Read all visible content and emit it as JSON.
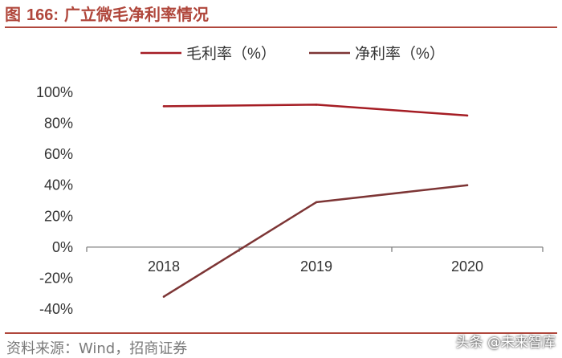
{
  "figure": {
    "title_prefix": "图",
    "title_number": "166:",
    "title_text": "广立微毛净利率情况",
    "source": "资料来源：Wind，招商证券",
    "watermark": "头条 @未来智库"
  },
  "colors": {
    "accent": "#b0473c",
    "gross_margin_line": "#a51d24",
    "net_margin_line": "#7d3535",
    "axis": "#7f7f7f"
  },
  "chart_data": {
    "type": "line",
    "title": "广立微毛净利率情况",
    "x": [
      "2018",
      "2019",
      "2020"
    ],
    "series": [
      {
        "name": "毛利率（%）",
        "values": [
          91,
          92,
          85
        ]
      },
      {
        "name": "净利率（%）",
        "values": [
          -32,
          29,
          40
        ]
      }
    ],
    "y_ticks": [
      "100%",
      "80%",
      "60%",
      "40%",
      "20%",
      "0%",
      "-20%",
      "-40%"
    ],
    "ylim": [
      -40,
      100
    ],
    "grid": false,
    "legend_position": "top"
  }
}
